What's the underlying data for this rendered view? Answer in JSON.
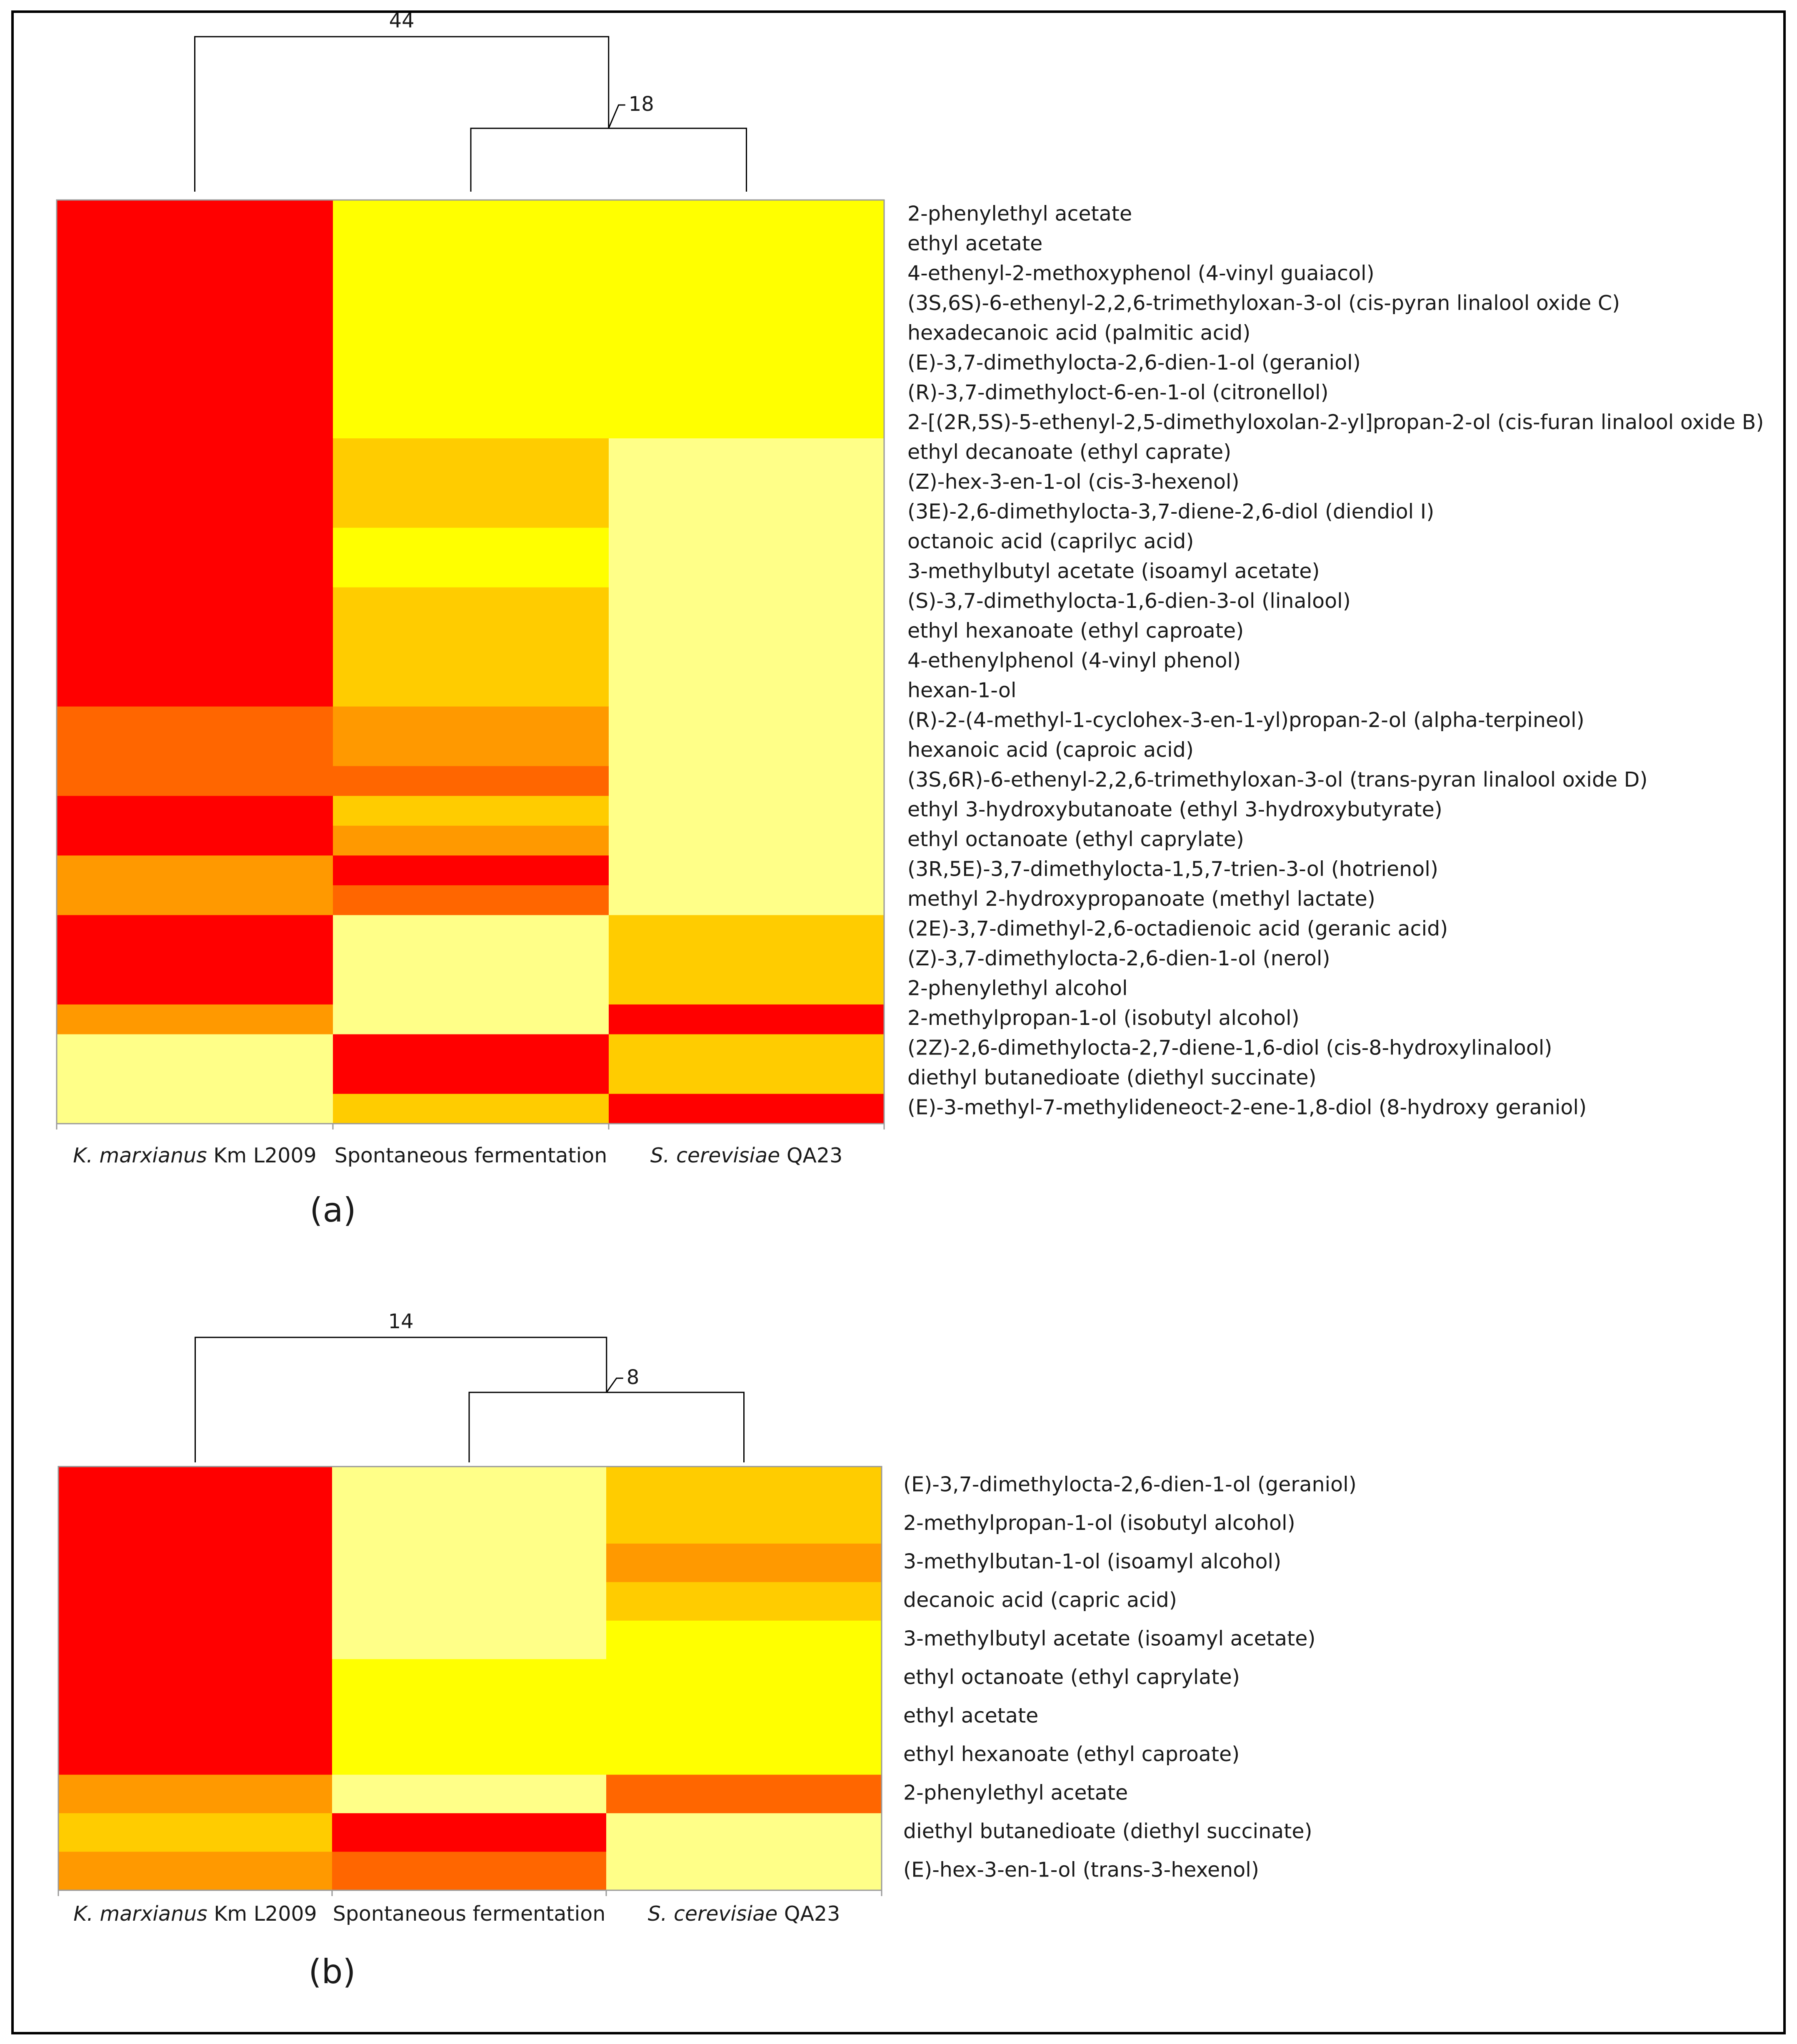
{
  "palette": {
    "1": "#ff0000",
    "2": "#ff6600",
    "3": "#ff9900",
    "4": "#ffcc00",
    "5": "#ffff00",
    "6": "#ffff88"
  },
  "chart_data": [
    {
      "type": "heatmap",
      "panel_label": "(a)",
      "columns": [
        {
          "parts": [
            {
              "text": "K. marxianus",
              "italic": true
            },
            {
              "text": " Km L2009",
              "italic": false
            }
          ]
        },
        {
          "parts": [
            {
              "text": "Spontaneous fermentation",
              "italic": false
            }
          ]
        },
        {
          "parts": [
            {
              "text": "S. cerevisiae",
              "italic": true
            },
            {
              "text": " QA23",
              "italic": false
            }
          ]
        }
      ],
      "dendrogram": {
        "top_label": "44",
        "sub_label": "18",
        "structure": "(K. marxianus Km L2009, (Spontaneous fermentation, S. cerevisiae QA23))"
      },
      "rows": [
        "2-phenylethyl acetate",
        "ethyl acetate",
        "4-ethenyl-2-methoxyphenol (4-vinyl guaiacol)",
        "(3S,6S)-6-ethenyl-2,2,6-trimethyloxan-3-ol (cis-pyran linalool oxide C)",
        "hexadecanoic acid (palmitic acid)",
        "(E)-3,7-dimethylocta-2,6-dien-1-ol (geraniol)",
        "(R)-3,7-dimethyloct-6-en-1-ol (citronellol)",
        "2-[(2R,5S)-5-ethenyl-2,5-dimethyloxolan-2-yl]propan-2-ol (cis-furan linalool oxide B)",
        "ethyl decanoate (ethyl caprate)",
        "(Z)-hex-3-en-1-ol (cis-3-hexenol)",
        "(3E)-2,6-dimethylocta-3,7-diene-2,6-diol (diendiol I)",
        "octanoic acid (caprilyc acid)",
        "3-methylbutyl acetate (isoamyl acetate)",
        "(S)-3,7-dimethylocta-1,6-dien-3-ol (linalool)",
        "ethyl hexanoate (ethyl caproate)",
        "4-ethenylphenol (4-vinyl phenol)",
        "hexan-1-ol",
        "(R)-2-(4-methyl-1-cyclohex-3-en-1-yl)propan-2-ol (alpha-terpineol)",
        "hexanoic acid (caproic acid)",
        "(3S,6R)-6-ethenyl-2,2,6-trimethyloxan-3-ol (trans-pyran linalool oxide D)",
        "ethyl 3-hydroxybutanoate (ethyl 3-hydroxybutyrate)",
        "ethyl octanoate (ethyl caprylate)",
        "(3R,5E)-3,7-dimethylocta-1,5,7-trien-3-ol (hotrienol)",
        "methyl 2-hydroxypropanoate (methyl lactate)",
        "(2E)-3,7-dimethyl-2,6-octadienoic acid (geranic acid)",
        "(Z)-3,7-dimethylocta-2,6-dien-1-ol (nerol)",
        "2-phenylethyl alcohol",
        "2-methylpropan-1-ol (isobutyl alcohol)",
        "(2Z)-2,6-dimethylocta-2,7-diene-1,6-diol (cis-8-hydroxylinalool)",
        "diethyl butanedioate (diethyl succinate)",
        "(E)-3-methyl-7-methylideneoct-2-ene-1,8-diol (8-hydroxy geraniol)"
      ],
      "values": [
        [
          1,
          5,
          5
        ],
        [
          1,
          5,
          5
        ],
        [
          1,
          5,
          5
        ],
        [
          1,
          5,
          5
        ],
        [
          1,
          5,
          5
        ],
        [
          1,
          5,
          5
        ],
        [
          1,
          5,
          5
        ],
        [
          1,
          5,
          5
        ],
        [
          1,
          4,
          6
        ],
        [
          1,
          4,
          6
        ],
        [
          1,
          4,
          6
        ],
        [
          1,
          5,
          6
        ],
        [
          1,
          5,
          6
        ],
        [
          1,
          4,
          6
        ],
        [
          1,
          4,
          6
        ],
        [
          1,
          4,
          6
        ],
        [
          1,
          4,
          6
        ],
        [
          2,
          3,
          6
        ],
        [
          2,
          3,
          6
        ],
        [
          2,
          2,
          6
        ],
        [
          1,
          4,
          6
        ],
        [
          1,
          3,
          6
        ],
        [
          3,
          1,
          6
        ],
        [
          3,
          2,
          6
        ],
        [
          1,
          6,
          4
        ],
        [
          1,
          6,
          4
        ],
        [
          1,
          6,
          4
        ],
        [
          3,
          6,
          1
        ],
        [
          6,
          1,
          4
        ],
        [
          6,
          1,
          4
        ],
        [
          6,
          4,
          1
        ]
      ],
      "scale_note": "1 = red (highest), 6 = pale yellow (lowest)"
    },
    {
      "type": "heatmap",
      "panel_label": "(b)",
      "columns": [
        {
          "parts": [
            {
              "text": "K. marxianus",
              "italic": true
            },
            {
              "text": " Km L2009",
              "italic": false
            }
          ]
        },
        {
          "parts": [
            {
              "text": "Spontaneous fermentation",
              "italic": false
            }
          ]
        },
        {
          "parts": [
            {
              "text": "S. cerevisiae",
              "italic": true
            },
            {
              "text": " QA23",
              "italic": false
            }
          ]
        }
      ],
      "dendrogram": {
        "top_label": "14",
        "sub_label": "8",
        "structure": "(K. marxianus Km L2009, (Spontaneous fermentation, S. cerevisiae QA23))"
      },
      "rows": [
        "(E)-3,7-dimethylocta-2,6-dien-1-ol (geraniol)",
        "2-methylpropan-1-ol (isobutyl alcohol)",
        "3-methylbutan-1-ol (isoamyl alcohol)",
        "decanoic acid (capric acid)",
        "3-methylbutyl acetate (isoamyl acetate)",
        "ethyl octanoate (ethyl caprylate)",
        "ethyl acetate",
        "ethyl hexanoate (ethyl caproate)",
        "2-phenylethyl acetate",
        "diethyl butanedioate (diethyl succinate)",
        "(E)-hex-3-en-1-ol (trans-3-hexenol)"
      ],
      "values": [
        [
          1,
          6,
          4
        ],
        [
          1,
          6,
          4
        ],
        [
          1,
          6,
          3
        ],
        [
          1,
          6,
          4
        ],
        [
          1,
          6,
          5
        ],
        [
          1,
          5,
          5
        ],
        [
          1,
          5,
          5
        ],
        [
          1,
          5,
          5
        ],
        [
          3,
          6,
          2
        ],
        [
          4,
          1,
          6
        ],
        [
          3,
          2,
          6
        ]
      ],
      "scale_note": "1 = red (highest), 6 = pale yellow (lowest)"
    }
  ]
}
